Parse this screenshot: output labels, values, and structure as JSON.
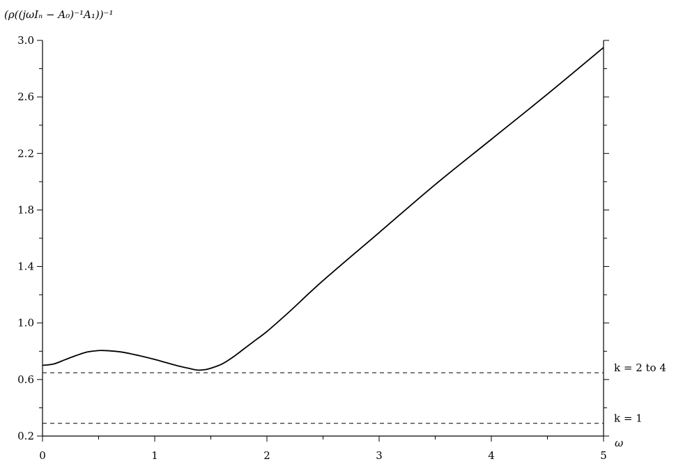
{
  "chart_data": {
    "type": "line",
    "ylabel": "(ρ((jωIₙ − A₀)⁻¹A₁))⁻¹",
    "xlabel": "ω",
    "xlim": [
      0,
      5
    ],
    "ylim": [
      0.2,
      3.0
    ],
    "x_ticks": [
      0,
      1,
      2,
      3,
      4,
      5
    ],
    "y_ticks": [
      0.2,
      0.6,
      1.0,
      1.4,
      1.8,
      2.2,
      2.6,
      3.0
    ],
    "x_tick_labels": [
      "0",
      "1",
      "2",
      "3",
      "4",
      "5"
    ],
    "y_tick_labels": [
      "0.2",
      "0.6",
      "1.0",
      "1.4",
      "1.8",
      "2.2",
      "2.6",
      "3.0"
    ],
    "grid": false,
    "series": [
      {
        "style": "solid",
        "color": "#000000",
        "x": [
          0,
          0.1,
          0.2,
          0.3,
          0.4,
          0.5,
          0.55,
          0.6,
          0.7,
          0.8,
          0.9,
          1.0,
          1.1,
          1.2,
          1.3,
          1.38,
          1.45,
          1.5,
          1.6,
          1.7,
          1.8,
          1.9,
          2.0,
          2.2,
          2.5,
          3.0,
          3.5,
          4.0,
          4.5,
          5.0
        ],
        "y": [
          0.7,
          0.71,
          0.74,
          0.77,
          0.795,
          0.805,
          0.805,
          0.803,
          0.795,
          0.78,
          0.762,
          0.742,
          0.72,
          0.698,
          0.68,
          0.667,
          0.67,
          0.68,
          0.71,
          0.76,
          0.82,
          0.88,
          0.94,
          1.08,
          1.3,
          1.64,
          1.98,
          2.3,
          2.62,
          2.95
        ]
      }
    ],
    "reference_lines": [
      {
        "y": 0.648,
        "style": "dashed",
        "label": "k = 2 to 4"
      },
      {
        "y": 0.29,
        "style": "dashed",
        "label": "k = 1"
      }
    ]
  }
}
